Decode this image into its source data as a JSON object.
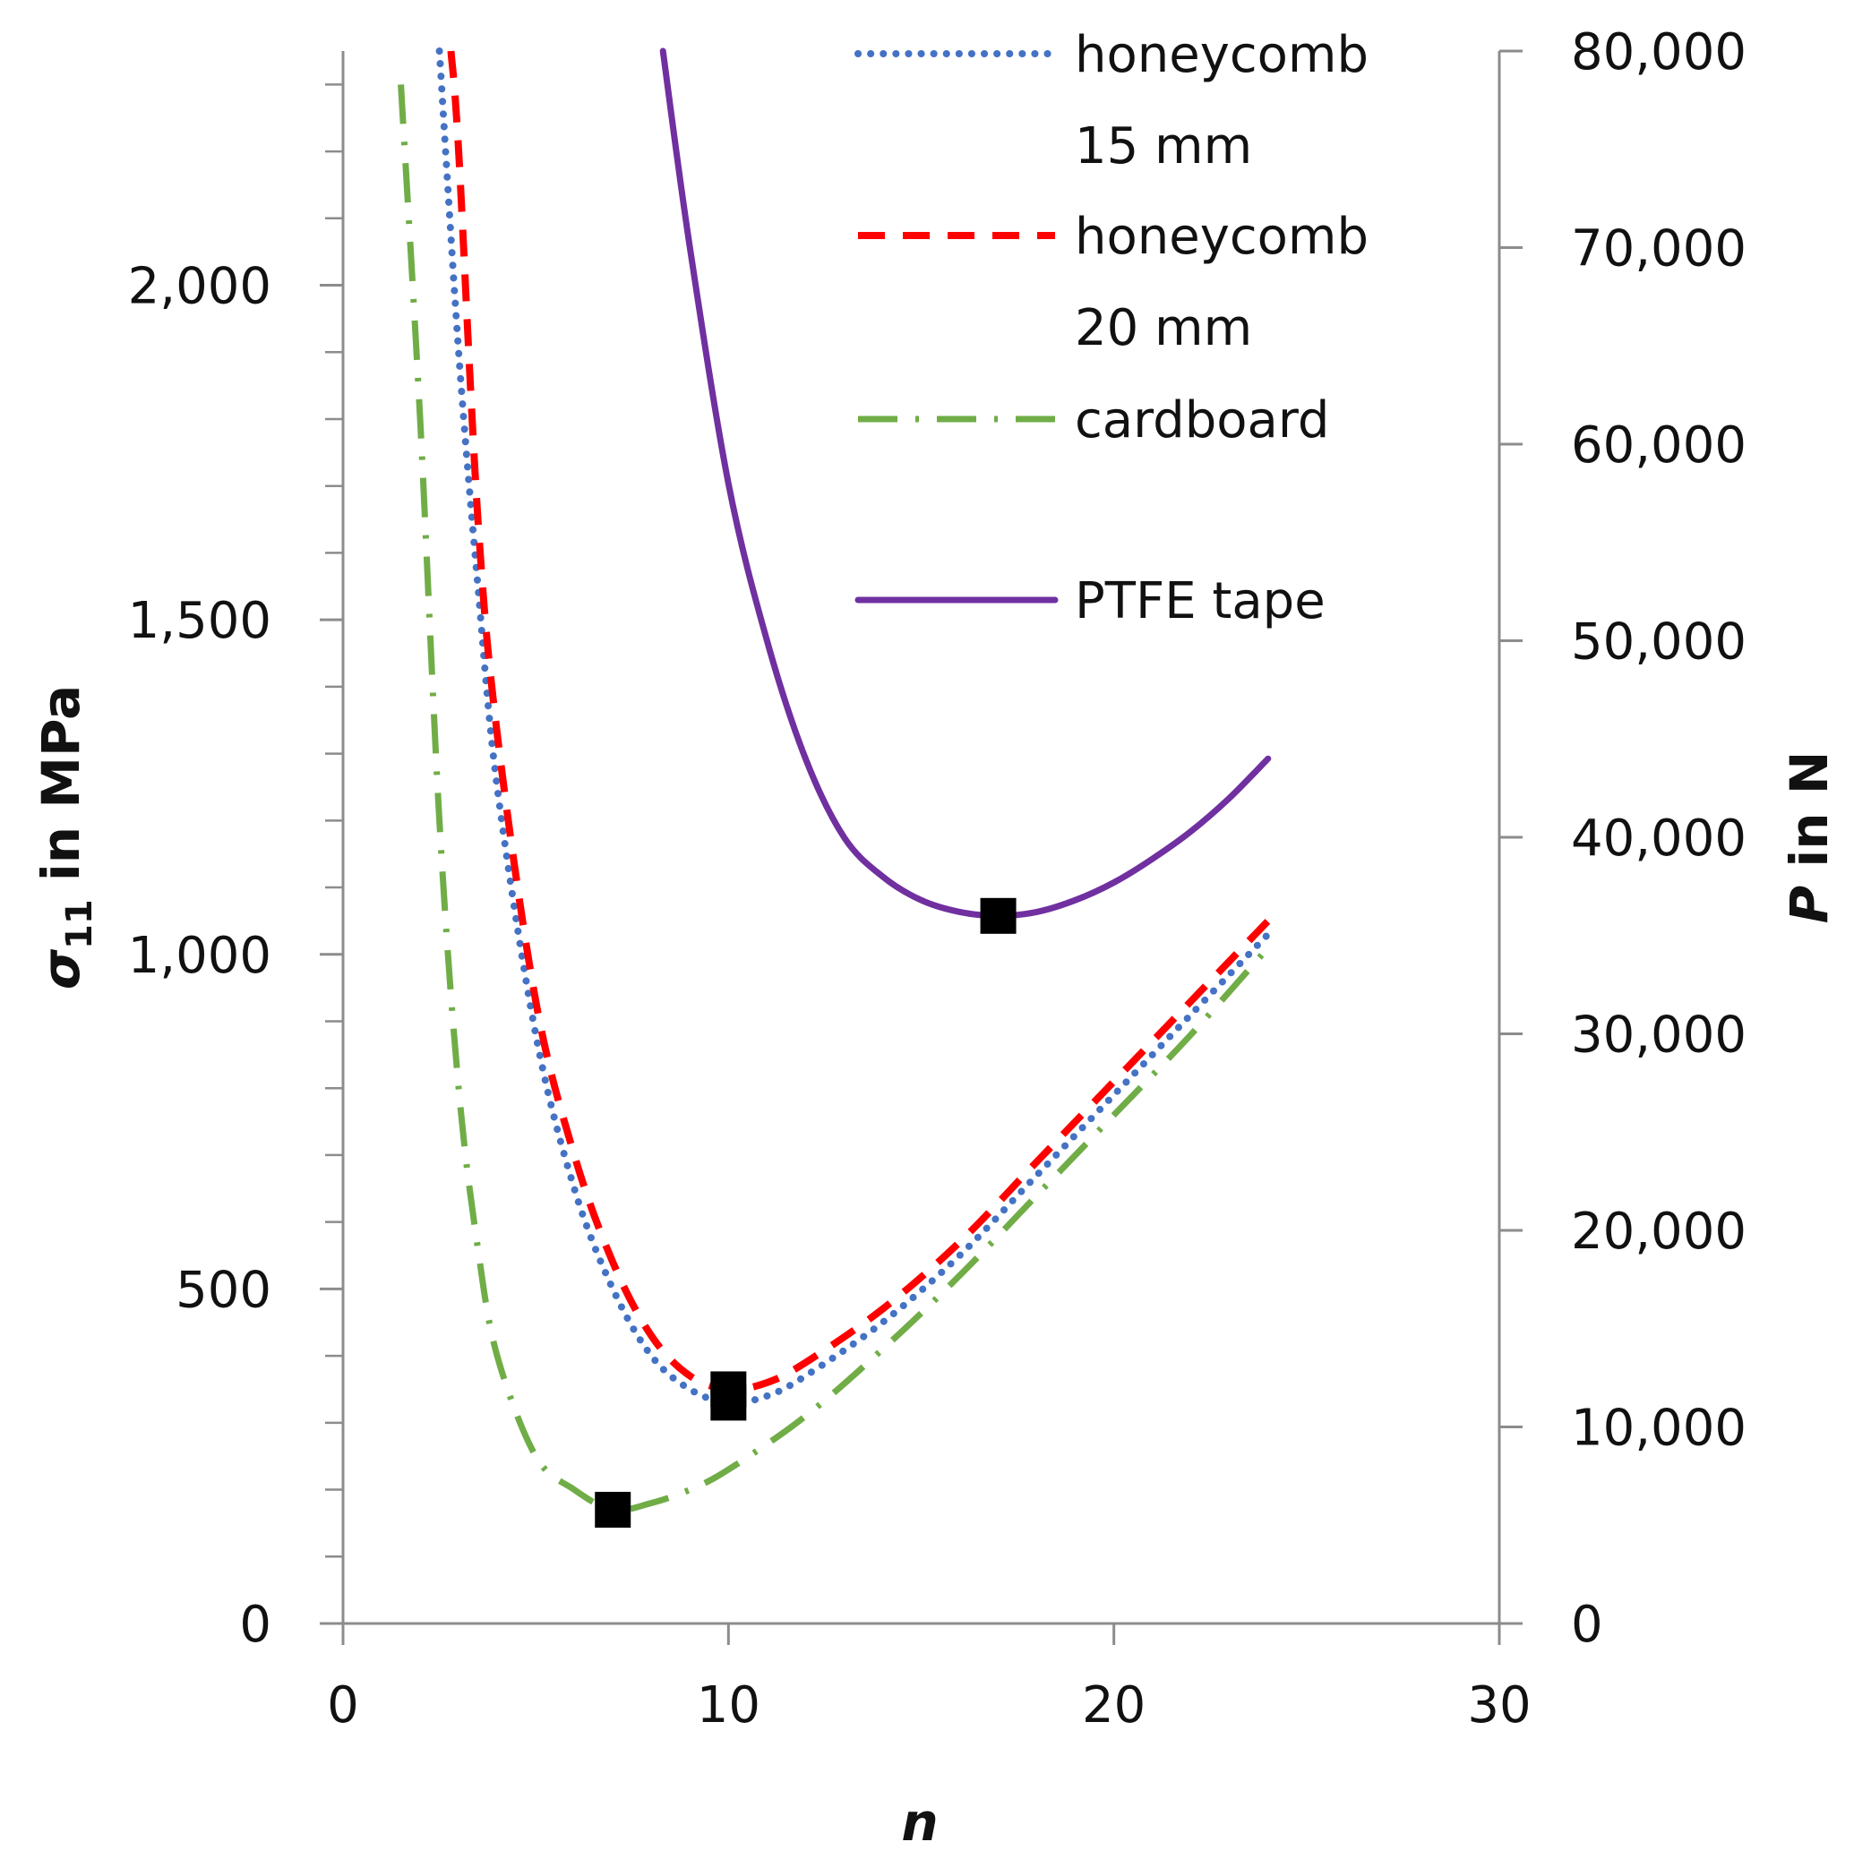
{
  "chart_data": {
    "type": "line",
    "x_axis": {
      "label": "n",
      "range": [
        0,
        30
      ],
      "ticks": [
        0,
        10,
        20,
        30
      ],
      "tick_labels": [
        "0",
        "10",
        "20",
        "30"
      ]
    },
    "y_left": {
      "label": "σ11 in MPa",
      "label_parts": {
        "symbol": "σ",
        "subscript": "11",
        "rest": " in MPa"
      },
      "range": [
        0,
        2350
      ],
      "ticks": [
        0,
        500,
        1000,
        1500,
        2000
      ],
      "tick_labels": [
        "0",
        "500",
        "1,000",
        "1,500",
        "2,000"
      ],
      "minor_step": 100
    },
    "y_right": {
      "label": "P in N",
      "label_parts": {
        "symbol": "P",
        "rest": " in N"
      },
      "range": [
        0,
        80000
      ],
      "ticks": [
        0,
        10000,
        20000,
        30000,
        40000,
        50000,
        60000,
        70000,
        80000
      ],
      "tick_labels": [
        "0",
        "10,000",
        "20,000",
        "30,000",
        "40,000",
        "50,000",
        "60,000",
        "70,000",
        "80,000"
      ]
    },
    "series": [
      {
        "name": "honeycomb 15 mm",
        "legend_lines": [
          "honeycomb",
          "15 mm"
        ],
        "color": "#4472C4",
        "dash": "dot",
        "axis": "left",
        "x": [
          2.5,
          3,
          3.5,
          4,
          5,
          6,
          7,
          8,
          9,
          10,
          11,
          12,
          14,
          16,
          18,
          20,
          22,
          24
        ],
        "y": [
          2350,
          1900,
          1550,
          1250,
          880,
          650,
          500,
          400,
          350,
          330,
          340,
          370,
          450,
          550,
          670,
          790,
          910,
          1030
        ],
        "optimum": {
          "x": 10,
          "y": 330
        }
      },
      {
        "name": "honeycomb 20 mm",
        "legend_lines": [
          "honeycomb",
          "20 mm"
        ],
        "color": "#FF0000",
        "dash": "dash",
        "axis": "left",
        "x": [
          2.8,
          3,
          3.5,
          4,
          5,
          6,
          7,
          8,
          9,
          10,
          11,
          12,
          14,
          16,
          18,
          20,
          22,
          24
        ],
        "y": [
          2350,
          2200,
          1650,
          1330,
          930,
          700,
          540,
          430,
          370,
          350,
          360,
          390,
          470,
          570,
          690,
          810,
          930,
          1050
        ],
        "optimum": {
          "x": 10,
          "y": 350
        }
      },
      {
        "name": "cardboard",
        "legend_lines": [
          "cardboard"
        ],
        "color": "#70AD47",
        "dash": "dashdot",
        "axis": "left",
        "x": [
          1.5,
          2,
          2.5,
          3,
          3.5,
          4,
          5,
          6,
          7,
          8,
          9,
          10,
          12,
          14,
          16,
          18,
          20,
          22,
          24
        ],
        "y": [
          2300,
          1800,
          1200,
          800,
          560,
          400,
          250,
          200,
          170,
          180,
          200,
          230,
          310,
          410,
          520,
          640,
          760,
          880,
          1010
        ],
        "optimum": {
          "x": 7,
          "y": 170
        }
      },
      {
        "name": "PTFE tape",
        "legend_lines": [
          "PTFE tape"
        ],
        "color": "#7030A0",
        "dash": "solid",
        "axis": "right",
        "x": [
          8.3,
          9,
          10,
          11,
          12,
          13,
          14,
          15,
          16,
          17,
          18,
          19,
          20,
          21,
          22,
          23,
          24
        ],
        "y": [
          80000,
          70000,
          58000,
          50000,
          44000,
          40000,
          38000,
          36800,
          36200,
          36000,
          36200,
          36800,
          37700,
          38900,
          40300,
          42000,
          44000
        ],
        "optimum": {
          "x": 17,
          "y": 36000
        }
      }
    ],
    "optimum_marker": "black-square",
    "legend_position": "top-right"
  }
}
